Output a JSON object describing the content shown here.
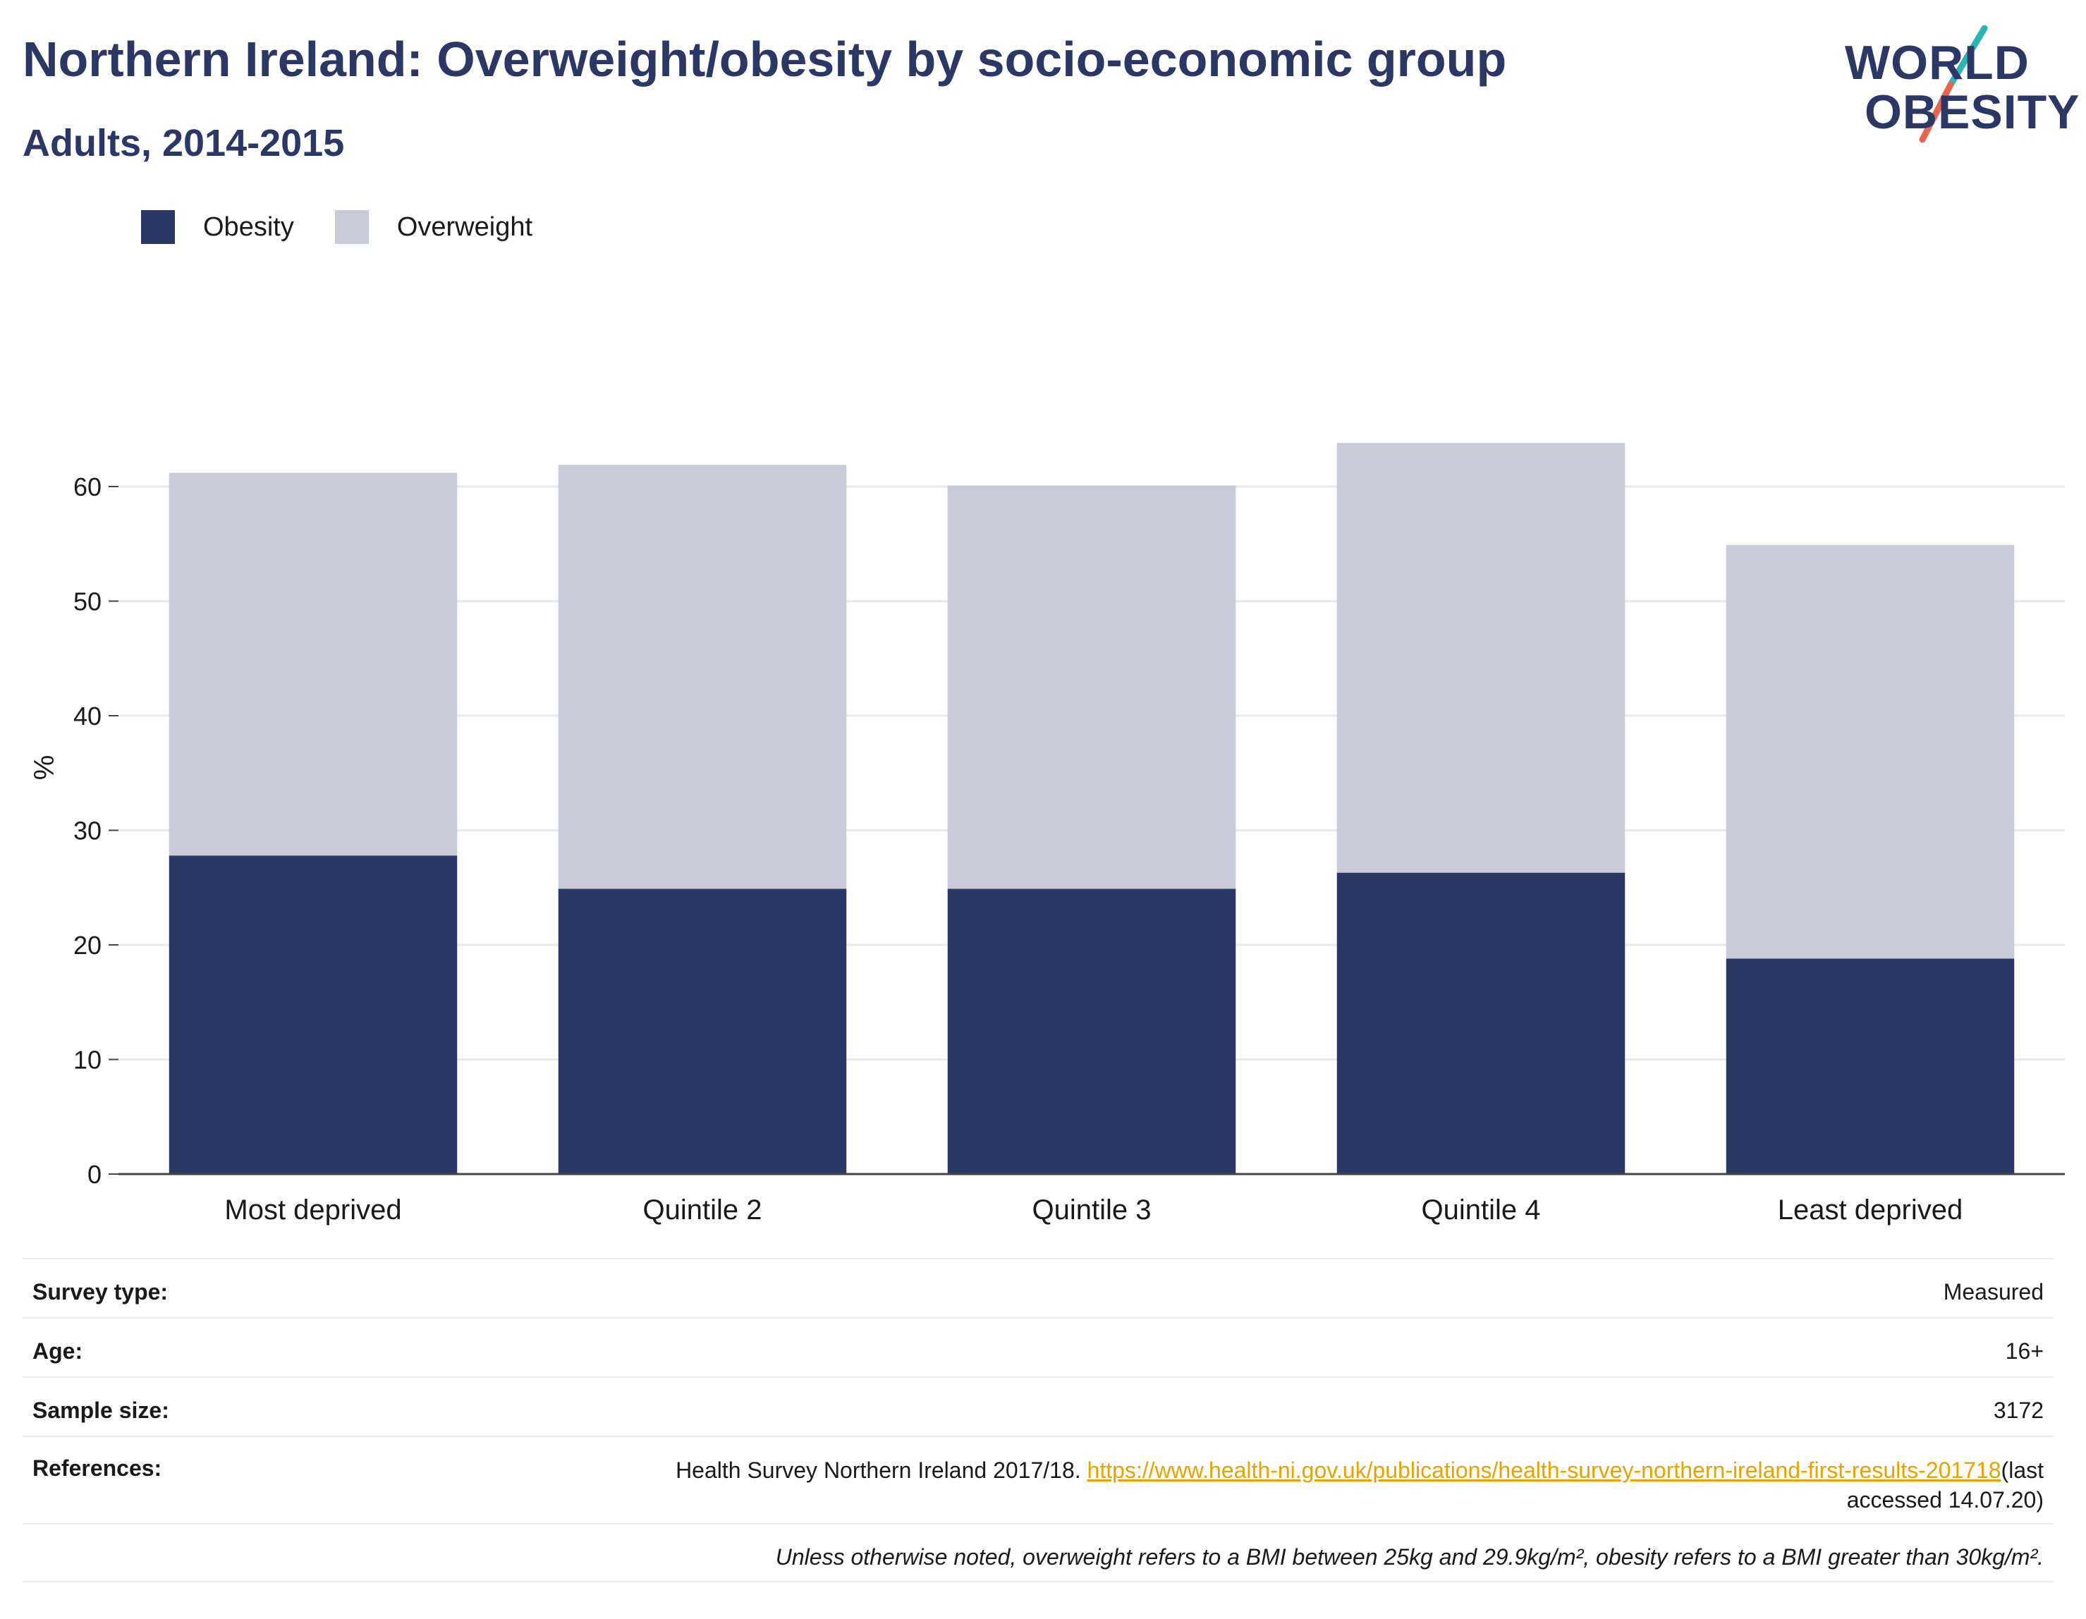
{
  "header": {
    "title": "Northern Ireland: Overweight/obesity by socio-economic group",
    "subtitle": "Adults, 2014-2015"
  },
  "logo": {
    "line1": "WORLD",
    "line2": "OBESITY",
    "text_color": "#2b3764",
    "slash_colors": [
      "#2bb5b0",
      "#e8654f"
    ]
  },
  "legend": {
    "items": [
      {
        "label": "Obesity",
        "color": "#2b3764"
      },
      {
        "label": "Overweight",
        "color": "#c9ccd8"
      }
    ]
  },
  "chart_data": {
    "type": "bar",
    "stacked": true,
    "categories": [
      "Most deprived",
      "Quintile 2",
      "Quintile 3",
      "Quintile 4",
      "Least deprived"
    ],
    "series": [
      {
        "name": "Obesity",
        "color": "#2b3764",
        "values": [
          27.8,
          24.9,
          24.9,
          26.3,
          18.8
        ]
      },
      {
        "name": "Overweight",
        "color": "#c9ccd8",
        "values": [
          33.4,
          37.0,
          35.2,
          37.5,
          36.1
        ]
      }
    ],
    "ylabel": "%",
    "ylim": [
      0,
      68
    ],
    "yticks": [
      0,
      10,
      20,
      30,
      40,
      50,
      60
    ],
    "grid": true,
    "legend_position": "top-left"
  },
  "details": {
    "survey_type": {
      "label": "Survey type:",
      "value": "Measured"
    },
    "age": {
      "label": "Age:",
      "value": "16+"
    },
    "sample_size": {
      "label": "Sample size:",
      "value": "3172"
    },
    "references": {
      "label": "References:",
      "text": "Health Survey Northern Ireland 2017/18. ",
      "link": "https://www.health-ni.gov.uk/publications/health-survey-northern-ireland-first-results-201718",
      "suffix": "(last accessed 14.07.20)"
    },
    "note": "Unless otherwise noted, overweight refers to a BMI between 25kg and 29.9kg/m², obesity refers to a BMI greater than 30kg/m²."
  }
}
